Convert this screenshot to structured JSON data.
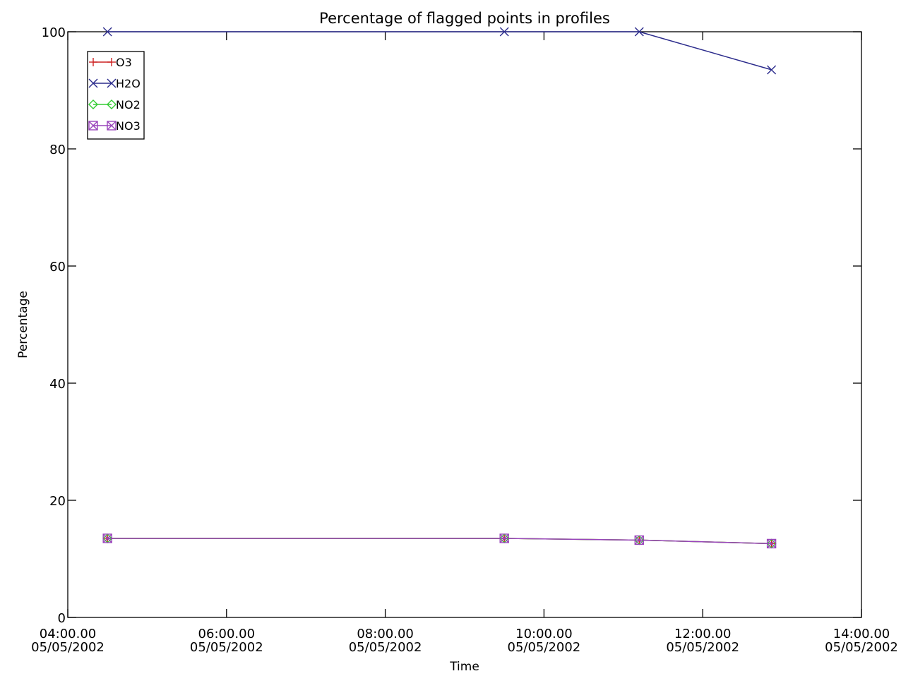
{
  "chart_data": {
    "type": "line",
    "title": "Percentage of flagged points in profiles",
    "xlabel": "Time",
    "ylabel": "Percentage",
    "xlim": [
      "04:00.00 05/05/2002",
      "14:00.00 05/05/2002"
    ],
    "ylim": [
      0,
      100
    ],
    "yticks": [
      "0",
      "20",
      "40",
      "60",
      "80",
      "100"
    ],
    "xticks": [
      {
        "time": "04:00.00",
        "date": "05/05/2002"
      },
      {
        "time": "06:00.00",
        "date": "05/05/2002"
      },
      {
        "time": "08:00.00",
        "date": "05/05/2002"
      },
      {
        "time": "10:00.00",
        "date": "05/05/2002"
      },
      {
        "time": "12:00.00",
        "date": "05/05/2002"
      },
      {
        "time": "14:00.00",
        "date": "05/05/2002"
      }
    ],
    "grid": false,
    "legend": "top-left",
    "series": [
      {
        "name": "O3",
        "color": "#cc2222",
        "marker": "plus",
        "x": [
          "04:30 05/05/2002",
          "09:30 05/05/2002",
          "11:12 05/05/2002",
          "12:52 05/05/2002"
        ],
        "y": [
          13.5,
          13.5,
          13.2,
          12.6
        ]
      },
      {
        "name": "H2O",
        "color": "#2b2b8c",
        "marker": "x",
        "x": [
          "04:30 05/05/2002",
          "09:30 05/05/2002",
          "11:12 05/05/2002",
          "12:52 05/05/2002"
        ],
        "y": [
          100,
          100,
          100,
          93.5
        ]
      },
      {
        "name": "NO2",
        "color": "#33cc33",
        "marker": "diamond",
        "x": [
          "04:30 05/05/2002",
          "09:30 05/05/2002",
          "11:12 05/05/2002",
          "12:52 05/05/2002"
        ],
        "y": [
          13.5,
          13.5,
          13.2,
          12.6
        ]
      },
      {
        "name": "NO3",
        "color": "#9944bb",
        "marker": "square-cross",
        "x": [
          "04:30 05/05/2002",
          "09:30 05/05/2002",
          "11:12 05/05/2002",
          "12:52 05/05/2002"
        ],
        "y": [
          13.5,
          13.5,
          13.2,
          12.6
        ]
      }
    ]
  }
}
